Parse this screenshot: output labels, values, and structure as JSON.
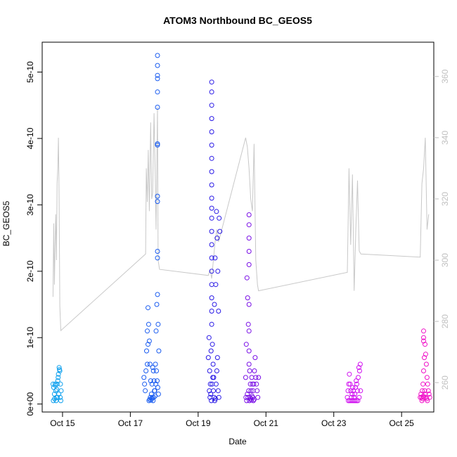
{
  "chart_data": {
    "type": "scatter",
    "title": "ATOM3 Northbound BC_GEOS5",
    "xlabel": "Date",
    "ylabel": "BC_GEOS5",
    "x_ticks": [
      {
        "label": "Oct 15",
        "value": 15
      },
      {
        "label": "Oct 17",
        "value": 17
      },
      {
        "label": "Oct 19",
        "value": 19
      },
      {
        "label": "Oct 21",
        "value": 21
      },
      {
        "label": "Oct 23",
        "value": 23
      },
      {
        "label": "Oct 25",
        "value": 25
      }
    ],
    "y_ticks": [
      {
        "label": "0e+00",
        "value": 0
      },
      {
        "label": "1e-10",
        "value": 1e-10
      },
      {
        "label": "2e-10",
        "value": 2e-10
      },
      {
        "label": "3e-10",
        "value": 3e-10
      },
      {
        "label": "4e-10",
        "value": 4e-10
      },
      {
        "label": "5e-10",
        "value": 5e-10
      }
    ],
    "y2_ticks": [
      {
        "label": "260",
        "value": 260
      },
      {
        "label": "280",
        "value": 280
      },
      {
        "label": "300",
        "value": 300
      },
      {
        "label": "320",
        "value": 320
      },
      {
        "label": "340",
        "value": 340
      },
      {
        "label": "360",
        "value": 360
      }
    ],
    "xlim": [
      14.4,
      25.95
    ],
    "ylim": [
      -1.2e-11,
      5.45e-10
    ],
    "y2lim": [
      250.4,
      371.2
    ],
    "series": [
      {
        "color": "#0ea0ee",
        "marker": "open-circle",
        "x": [
          14.72,
          14.74,
          14.76,
          14.78,
          14.8,
          14.82,
          14.84,
          14.86,
          14.88,
          14.9,
          14.92,
          14.94,
          14.96,
          14.73,
          14.77,
          14.81,
          14.85,
          14.89,
          14.93,
          14.95,
          14.79,
          14.83,
          14.87,
          14.91
        ],
        "y": [
          3e-11,
          2.5e-11,
          1.5e-11,
          3e-11,
          2e-11,
          1e-11,
          3e-11,
          3.5e-11,
          4.5e-11,
          5.5e-11,
          5e-11,
          3e-11,
          2e-11,
          5e-12,
          8e-12,
          5e-12,
          1e-11,
          1.5e-11,
          1e-11,
          5e-12,
          2.8e-11,
          2.2e-11,
          4e-11,
          5.2e-11
        ]
      },
      {
        "color": "#1a5cf0",
        "marker": "open-circle",
        "x": [
          17.4,
          17.42,
          17.44,
          17.46,
          17.48,
          17.5,
          17.52,
          17.54,
          17.56,
          17.58,
          17.6,
          17.62,
          17.64,
          17.66,
          17.68,
          17.7,
          17.72,
          17.74,
          17.76,
          17.78,
          17.8,
          17.82,
          17.84,
          17.55,
          17.57,
          17.59,
          17.61,
          17.63,
          17.65,
          17.67,
          17.69,
          17.71,
          17.73,
          17.75,
          17.77,
          17.79,
          17.81,
          17.83,
          17.5,
          17.52
        ],
        "y": [
          4e-11,
          3e-11,
          2e-11,
          5e-11,
          8e-11,
          1.1e-10,
          1.45e-10,
          1.2e-10,
          9.5e-11,
          6e-11,
          3.5e-11,
          1.5e-11,
          3e-11,
          5.5e-11,
          5e-11,
          3.5e-11,
          2e-11,
          6e-11,
          1.1e-10,
          1.5e-10,
          1.65e-10,
          1.2e-10,
          8e-11,
          5e-12,
          7e-12,
          1e-11,
          6e-12,
          8e-12,
          1e-11,
          5e-12,
          1e-11,
          2e-11,
          1.2e-11,
          3e-11,
          5e-11,
          3.5e-11,
          2.5e-11,
          1.5e-11,
          6e-11,
          9e-11
        ]
      },
      {
        "color": "#1a5cf0",
        "marker": "open-circle",
        "x": [
          17.8,
          17.8,
          17.8,
          17.8,
          17.8,
          17.8,
          17.8,
          17.8,
          17.8,
          17.8,
          17.8,
          17.8
        ],
        "y": [
          5.25e-10,
          5.1e-10,
          4.95e-10,
          4.9e-10,
          4.7e-10,
          4.47e-10,
          3.92e-10,
          3.9e-10,
          3.13e-10,
          3.05e-10,
          2.3e-10,
          2.2e-10
        ]
      },
      {
        "color": "#2a1ae6",
        "marker": "open-circle",
        "x": [
          19.3,
          19.32,
          19.34,
          19.36,
          19.38,
          19.4,
          19.42,
          19.44,
          19.46,
          19.48,
          19.5,
          19.52,
          19.54,
          19.56,
          19.58,
          19.6,
          19.62,
          19.64,
          19.33,
          19.35,
          19.37,
          19.39,
          19.41,
          19.43,
          19.45,
          19.47,
          19.49,
          19.51,
          19.53,
          19.55,
          19.57,
          19.59,
          19.61,
          19.4,
          19.4,
          19.4,
          19.4,
          19.4,
          19.4,
          19.4,
          19.4,
          19.4,
          19.4,
          19.4,
          19.4,
          19.4,
          19.4,
          19.4,
          19.4,
          19.4,
          19.4,
          19.4
        ],
        "y": [
          7e-11,
          1e-10,
          5e-11,
          3e-11,
          8e-11,
          1.2e-10,
          9e-11,
          6e-11,
          4e-11,
          1.5e-10,
          2.2e-10,
          1.8e-10,
          2.9e-10,
          2.5e-10,
          2e-10,
          1.4e-10,
          2.8e-10,
          2.6e-10,
          2e-11,
          1e-11,
          1.5e-11,
          5e-12,
          3e-11,
          4e-11,
          2e-11,
          1e-11,
          5e-12,
          8e-12,
          3e-11,
          5e-11,
          7e-11,
          2e-11,
          1e-11,
          4.85e-10,
          4.7e-10,
          4.5e-10,
          4.3e-10,
          4.1e-10,
          3.9e-10,
          3.7e-10,
          3.5e-10,
          3.3e-10,
          3.1e-10,
          2.95e-10,
          2.8e-10,
          2.6e-10,
          2.4e-10,
          2.2e-10,
          2e-10,
          1.8e-10,
          1.6e-10,
          1.4e-10
        ]
      },
      {
        "color": "#7a10e6",
        "marker": "open-circle",
        "x": [
          20.4,
          20.42,
          20.44,
          20.46,
          20.48,
          20.5,
          20.52,
          20.54,
          20.56,
          20.58,
          20.6,
          20.62,
          20.64,
          20.66,
          20.68,
          20.7,
          20.72,
          20.74,
          20.76,
          20.78,
          20.41,
          20.43,
          20.45,
          20.47,
          20.49,
          20.51,
          20.53,
          20.55,
          20.57,
          20.59,
          20.61,
          20.63,
          20.65,
          20.5,
          20.5,
          20.5,
          20.5,
          20.5,
          20.5,
          20.5,
          20.5
        ],
        "y": [
          4e-11,
          9e-11,
          1.9e-10,
          1.6e-10,
          1.2e-10,
          8e-11,
          5e-11,
          3e-11,
          2e-11,
          4e-11,
          3e-11,
          2e-11,
          3e-11,
          5e-11,
          7e-11,
          4e-11,
          3e-11,
          2e-11,
          1e-11,
          4e-11,
          1e-11,
          5e-12,
          1.5e-11,
          1e-11,
          2e-11,
          5e-12,
          1e-11,
          8e-12,
          6e-12,
          1.2e-11,
          1e-11,
          5e-12,
          7e-12,
          2.85e-10,
          2.7e-10,
          2.5e-10,
          2.3e-10,
          2.1e-10,
          1.5e-10,
          1.1e-10,
          6e-11
        ]
      },
      {
        "color": "#d010f0",
        "marker": "open-circle",
        "x": [
          23.4,
          23.42,
          23.44,
          23.46,
          23.48,
          23.5,
          23.52,
          23.54,
          23.56,
          23.58,
          23.6,
          23.62,
          23.64,
          23.66,
          23.68,
          23.7,
          23.72,
          23.74,
          23.76,
          23.78,
          23.43,
          23.47,
          23.51,
          23.55,
          23.59,
          23.63,
          23.67,
          23.71,
          23.75,
          23.79
        ],
        "y": [
          1e-11,
          2e-11,
          3e-11,
          4.5e-11,
          3e-11,
          2e-11,
          1e-11,
          1.5e-11,
          2.5e-11,
          2e-11,
          1e-11,
          1.5e-11,
          2.5e-11,
          3.5e-11,
          3e-11,
          2e-11,
          4e-11,
          5.5e-11,
          5e-11,
          6e-11,
          5e-12,
          5e-12,
          5e-12,
          5e-12,
          5e-12,
          5e-12,
          5e-12,
          5e-12,
          1e-11,
          2e-11
        ]
      },
      {
        "color": "#f010c8",
        "marker": "open-circle",
        "x": [
          25.55,
          25.57,
          25.59,
          25.61,
          25.63,
          25.65,
          25.67,
          25.69,
          25.71,
          25.73,
          25.75,
          25.77,
          25.79,
          25.81,
          25.83,
          25.6,
          25.62,
          25.64,
          25.66,
          25.68,
          25.7,
          25.72,
          25.74,
          25.76,
          25.65,
          25.65,
          25.65
        ],
        "y": [
          1e-11,
          1.5e-11,
          1e-11,
          2e-11,
          3e-11,
          5e-11,
          7e-11,
          9e-11,
          7.5e-11,
          6e-11,
          4e-11,
          3e-11,
          2e-11,
          1.5e-11,
          1e-11,
          5e-12,
          8e-12,
          1.2e-11,
          1e-11,
          2e-11,
          1.5e-11,
          1e-11,
          8e-12,
          5e-12,
          1.1e-10,
          1e-10,
          9.5e-11
        ]
      }
    ],
    "secondary_series": {
      "color": "#c8c8c8",
      "axis": "right",
      "type": "line",
      "x": [
        14.72,
        14.74,
        14.76,
        14.78,
        14.8,
        14.82,
        14.84,
        14.86,
        14.88,
        14.9,
        14.92,
        14.95,
        17.45,
        17.47,
        17.5,
        17.53,
        17.56,
        17.6,
        17.63,
        17.66,
        17.7,
        17.73,
        17.76,
        17.8,
        17.82,
        17.86,
        19.3,
        19.35,
        19.4,
        19.45,
        19.5,
        19.55,
        19.6,
        19.65,
        20.4,
        20.45,
        20.5,
        20.55,
        20.6,
        20.65,
        20.7,
        20.75,
        20.78,
        23.4,
        23.45,
        23.5,
        23.55,
        23.6,
        23.65,
        23.7,
        23.75,
        23.8,
        25.55,
        25.6,
        25.65,
        25.7,
        25.75,
        25.8
      ],
      "y": [
        288,
        312,
        292,
        305,
        315,
        300,
        325,
        330,
        340,
        320,
        285,
        277,
        302,
        330,
        319,
        336,
        316,
        345,
        320,
        322,
        348,
        330,
        310,
        350,
        300,
        297,
        295,
        297,
        294,
        300,
        306,
        310,
        306,
        308,
        340,
        337,
        330,
        320,
        316,
        338,
        300,
        292,
        290,
        296,
        330,
        305,
        328,
        290,
        310,
        326,
        303,
        302,
        301,
        325,
        330,
        340,
        310,
        315
      ]
    }
  }
}
